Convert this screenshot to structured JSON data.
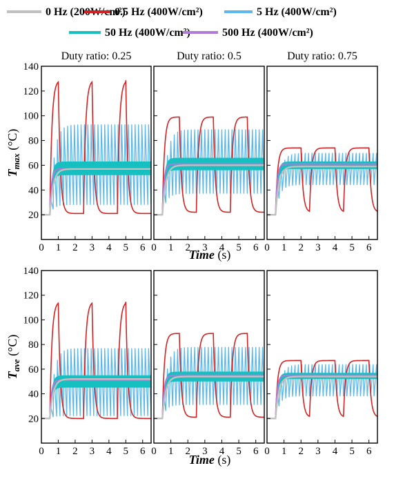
{
  "legend": {
    "entries": [
      {
        "label": "0 Hz (200W/cm²)",
        "color": "#c0c0c0"
      },
      {
        "label": "0.5 Hz (400W/cm²)",
        "color": "#d42020"
      },
      {
        "label": "5 Hz (400W/cm²)",
        "color": "#5ab8ec"
      },
      {
        "label": "50 Hz (400W/cm²)",
        "color": "#16c0c0"
      },
      {
        "label": "500 Hz (400W/cm²)",
        "color": "#b07ad8"
      }
    ]
  },
  "chart_data": {
    "type": "line",
    "title": "",
    "columns": [
      "Duty ratio: 0.25",
      "Duty ratio: 0.5",
      "Duty ratio: 0.75"
    ],
    "rows": [
      {
        "ylabel_main": "T",
        "ylabel_sub": "max",
        "ylabel_unit": " (°C)"
      },
      {
        "ylabel_main": "T",
        "ylabel_sub": "ave",
        "ylabel_unit": " (°C)"
      }
    ],
    "xlabel_main": "Time",
    "xlabel_unit": " (s)",
    "xlim": [
      0,
      6.5
    ],
    "ylim": [
      0,
      140
    ],
    "xticks": [
      0,
      1,
      2,
      3,
      4,
      5,
      6
    ],
    "yticks": [
      20,
      40,
      60,
      80,
      100,
      120,
      140
    ],
    "source_on": 0.5,
    "initial_temp": 20,
    "panels": [
      {
        "row": 0,
        "col": 0,
        "duty": 0.25,
        "series": {
          "0 Hz": {
            "steady": 57
          },
          "0.5 Hz": {
            "max": 129,
            "min": 21
          },
          "5 Hz": {
            "max": 93,
            "min": 28
          },
          "50 Hz": {
            "max": 63,
            "min": 52
          },
          "500 Hz": {
            "mean": 57
          }
        }
      },
      {
        "row": 0,
        "col": 1,
        "duty": 0.5,
        "series": {
          "0 Hz": {
            "steady": 60
          },
          "0.5 Hz": {
            "max": 99,
            "min": 22
          },
          "5 Hz": {
            "max": 89,
            "min": 37
          },
          "50 Hz": {
            "max": 66,
            "min": 56
          },
          "500 Hz": {
            "mean": 61
          }
        }
      },
      {
        "row": 0,
        "col": 2,
        "duty": 0.75,
        "series": {
          "0 Hz": {
            "steady": 59
          },
          "0.5 Hz": {
            "max": 74,
            "min": 22
          },
          "5 Hz": {
            "max": 70,
            "min": 44
          },
          "50 Hz": {
            "max": 63,
            "min": 57
          },
          "500 Hz": {
            "mean": 61
          }
        }
      },
      {
        "row": 1,
        "col": 0,
        "duty": 0.25,
        "series": {
          "0 Hz": {
            "steady": 52
          },
          "0.5 Hz": {
            "max": 115,
            "min": 20
          },
          "5 Hz": {
            "max": 77,
            "min": 22
          },
          "50 Hz": {
            "max": 55,
            "min": 45
          },
          "500 Hz": {
            "mean": 51
          }
        }
      },
      {
        "row": 1,
        "col": 1,
        "duty": 0.5,
        "series": {
          "0 Hz": {
            "steady": 54
          },
          "0.5 Hz": {
            "max": 89,
            "min": 21
          },
          "5 Hz": {
            "max": 78,
            "min": 31
          },
          "50 Hz": {
            "max": 58,
            "min": 50
          },
          "500 Hz": {
            "mean": 55
          }
        }
      },
      {
        "row": 1,
        "col": 2,
        "duty": 0.75,
        "series": {
          "0 Hz": {
            "steady": 54
          },
          "0.5 Hz": {
            "max": 67,
            "min": 21
          },
          "5 Hz": {
            "max": 64,
            "min": 38
          },
          "50 Hz": {
            "max": 57,
            "min": 52
          },
          "500 Hz": {
            "mean": 55
          }
        }
      }
    ]
  }
}
